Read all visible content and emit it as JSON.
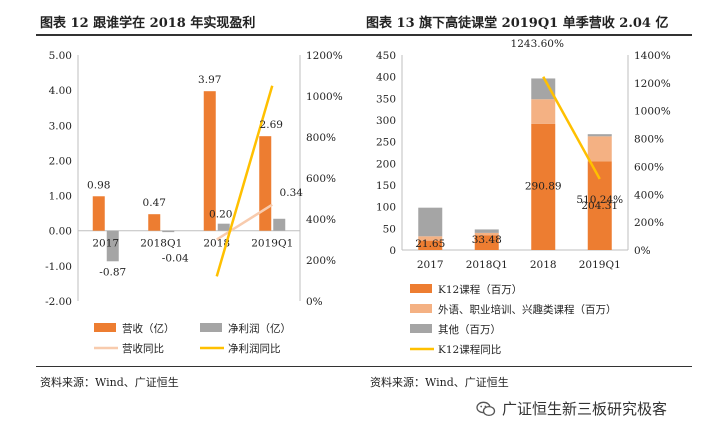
{
  "chart_data": [
    {
      "type": "bar",
      "title": "图表 12 跟谁学在 2018 年实现盈利",
      "categories": [
        "2017",
        "2018Q1",
        "2018",
        "2019Q1"
      ],
      "series": [
        {
          "name": "营收（亿）",
          "kind": "bar",
          "axis": "left",
          "values": [
            0.98,
            0.47,
            3.97,
            2.69
          ],
          "color": "#ed7d31"
        },
        {
          "name": "净利润（亿）",
          "kind": "bar",
          "axis": "left",
          "values": [
            -0.87,
            -0.04,
            0.2,
            0.34
          ],
          "color": "#a5a5a5"
        },
        {
          "name": "营收同比",
          "kind": "line",
          "axis": "right",
          "points": [
            [
              2,
              300
            ],
            [
              3,
              470
            ]
          ],
          "color": "#f8cbad"
        },
        {
          "name": "净利润同比",
          "kind": "line",
          "axis": "right",
          "points": [
            [
              2,
              120
            ],
            [
              3,
              1050
            ]
          ],
          "color": "#ffc000"
        }
      ],
      "labels": {
        "revenue": [
          "0.98",
          "0.47",
          "3.97",
          "2.69"
        ],
        "profit": [
          "-0.87",
          "-0.04",
          "0.20",
          "0.34"
        ]
      },
      "y_left": {
        "min": -2,
        "max": 5,
        "ticks": [
          "-2.00",
          "-1.00",
          "0.00",
          "1.00",
          "2.00",
          "3.00",
          "4.00",
          "5.00"
        ]
      },
      "y_right": {
        "min": 0,
        "max": 1200,
        "ticks": [
          "0%",
          "200%",
          "400%",
          "600%",
          "800%",
          "1000%",
          "1200%"
        ]
      },
      "legend_position": "bottom",
      "source": "资料来源：Wind、广证恒生"
    },
    {
      "type": "bar",
      "title": "图表 13 旗下高徒课堂 2019Q1 单季营收 2.04 亿",
      "categories": [
        "2017",
        "2018Q1",
        "2018",
        "2019Q1"
      ],
      "stacked": true,
      "series": [
        {
          "name": "K12课程（百万）",
          "kind": "bar",
          "axis": "left",
          "values": [
            21.65,
            33.48,
            290.89,
            204.31
          ],
          "color": "#ed7d31"
        },
        {
          "name": "外语、职业培训、兴趣类课程（百万）",
          "kind": "bar",
          "axis": "left",
          "values": [
            10,
            6,
            57,
            58
          ],
          "color": "#f4b183"
        },
        {
          "name": "其他（百万）",
          "kind": "bar",
          "axis": "left",
          "values": [
            66,
            8,
            48,
            5
          ],
          "color": "#a5a5a5"
        },
        {
          "name": "K12课程同比",
          "kind": "line",
          "axis": "right",
          "points": [
            [
              2,
              1243.6
            ],
            [
              3,
              510.24
            ]
          ],
          "color": "#ffc000"
        }
      ],
      "labels": {
        "k12": [
          "21.65",
          "33.48",
          "290.89",
          "204.31"
        ],
        "yoy": [
          "1243.60%",
          "510.24%"
        ]
      },
      "y_left": {
        "min": 0,
        "max": 450,
        "ticks": [
          "0",
          "50",
          "100",
          "150",
          "200",
          "250",
          "300",
          "350",
          "400",
          "450"
        ]
      },
      "y_right": {
        "min": 0,
        "max": 1400,
        "ticks": [
          "0%",
          "200%",
          "400%",
          "600%",
          "800%",
          "1000%",
          "1200%",
          "1400%"
        ]
      },
      "legend_position": "bottom",
      "source": "资料来源：Wind、广证恒生"
    }
  ],
  "watermark": {
    "text": "广证恒生新三板研究极客",
    "icon": "wechat-icon"
  }
}
